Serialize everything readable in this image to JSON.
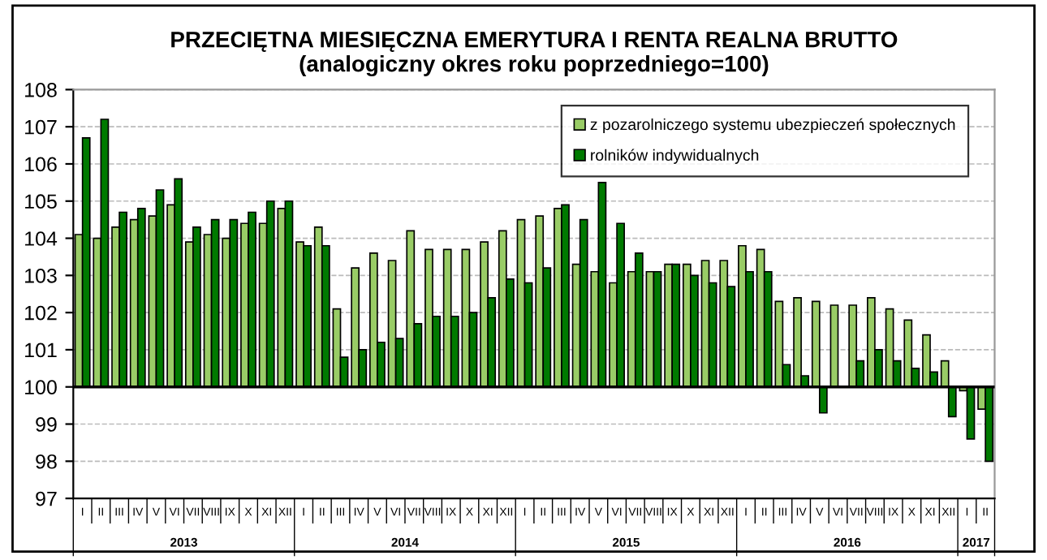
{
  "chart_data": {
    "type": "bar",
    "title": "PRZECIĘTNA MIESIĘCZNA EMERYTURA I RENTA REALNA BRUTTO\n(analogiczny okres roku poprzedniego=100)",
    "categories": [
      "I",
      "II",
      "III",
      "IV",
      "V",
      "VI",
      "VII",
      "VIII",
      "IX",
      "X",
      "XI",
      "XII",
      "I",
      "II",
      "III",
      "IV",
      "V",
      "VI",
      "VII",
      "VIII",
      "IX",
      "X",
      "XI",
      "XII",
      "I",
      "II",
      "III",
      "IV",
      "V",
      "VI",
      "VII",
      "VIII",
      "IX",
      "X",
      "XI",
      "XII",
      "I",
      "II",
      "III",
      "IV",
      "V",
      "VI",
      "VII",
      "VIII",
      "IX",
      "X",
      "XI",
      "XII",
      "I",
      "II"
    ],
    "series": [
      {
        "name": "z pozarolniczego systemu ubezpieczeń społecznych",
        "color": "#99cc66",
        "values": [
          4.1,
          4.0,
          4.3,
          4.5,
          4.6,
          4.9,
          3.9,
          4.1,
          4.0,
          4.4,
          4.4,
          4.8,
          3.9,
          4.3,
          2.1,
          3.2,
          3.6,
          3.4,
          4.2,
          3.7,
          3.7,
          3.7,
          3.9,
          4.2,
          4.5,
          4.6,
          4.8,
          3.3,
          3.1,
          2.8,
          3.1,
          3.1,
          3.3,
          3.3,
          3.4,
          3.4,
          3.8,
          3.7,
          2.3,
          2.4,
          2.3,
          2.2,
          2.2,
          2.4,
          2.1,
          1.8,
          1.4,
          0.7,
          -0.1,
          -0.6
        ],
        "base": [
          100,
          100,
          100,
          100,
          100,
          100,
          100,
          100,
          100,
          100,
          100,
          100,
          100,
          100,
          100,
          100,
          100,
          100,
          100,
          100,
          100,
          100,
          100,
          100,
          100,
          100,
          100,
          100,
          100,
          100,
          100,
          100,
          100,
          100,
          100,
          100,
          100,
          100,
          100,
          100,
          100,
          100,
          100,
          100,
          100,
          100,
          100,
          100,
          100,
          100
        ]
      },
      {
        "name": "rolników indywidualnych",
        "color": "#007a00",
        "values": [
          6.7,
          7.2,
          4.7,
          4.8,
          5.3,
          5.6,
          4.3,
          4.5,
          4.5,
          4.7,
          5.0,
          5.0,
          3.8,
          3.8,
          0.8,
          1.0,
          1.2,
          1.3,
          1.7,
          1.9,
          1.9,
          2.0,
          2.4,
          2.9,
          2.8,
          3.2,
          4.9,
          4.5,
          5.5,
          4.4,
          3.6,
          3.1,
          3.3,
          3.0,
          2.8,
          2.7,
          3.1,
          3.1,
          0.6,
          0.3,
          -0.7,
          null,
          0.7,
          1.0,
          0.7,
          0.5,
          0.4,
          -0.8,
          -1.4,
          -2.0
        ],
        "base": [
          100,
          100,
          100,
          100,
          100,
          100,
          100,
          100,
          100,
          100,
          100,
          100,
          100,
          100,
          100,
          100,
          100,
          100,
          100,
          100,
          100,
          100,
          100,
          100,
          100,
          100,
          100,
          100,
          100,
          100,
          100,
          100,
          100,
          100,
          100,
          100,
          100,
          100,
          100,
          100,
          100,
          null,
          100,
          100,
          100,
          100,
          100,
          100,
          100,
          100
        ]
      }
    ],
    "annotations": [
      "2013",
      "2014",
      "2015",
      "2016",
      "2017"
    ],
    "ylim": [
      97,
      108
    ],
    "yticks": [
      97,
      98,
      99,
      100,
      101,
      102,
      103,
      104,
      105,
      106,
      107,
      108
    ],
    "ref_lines": [
      {
        "axis": "y",
        "value": 100,
        "label": null,
        "color": "#000000"
      }
    ],
    "grid": "y",
    "legend": "top right"
  }
}
